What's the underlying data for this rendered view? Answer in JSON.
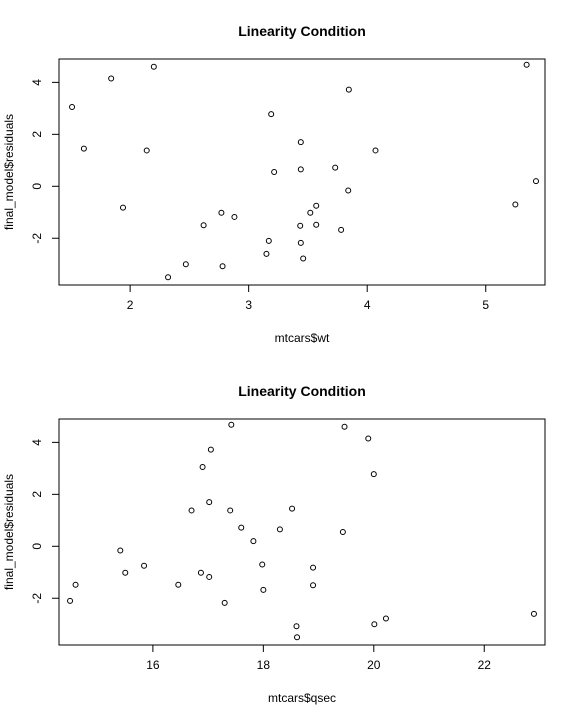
{
  "chart_data": [
    {
      "type": "scatter",
      "title": "Linearity Condition",
      "xlabel": "mtcars$wt",
      "ylabel": "final_model$residuals",
      "xlim": [
        1.4,
        5.5
      ],
      "ylim": [
        -3.8,
        4.9
      ],
      "xticks": [
        2,
        3,
        4,
        5
      ],
      "yticks": [
        -2,
        0,
        2,
        4
      ],
      "xtick_labels": [
        "2",
        "3",
        "4",
        "5"
      ],
      "ytick_labels": [
        "-2",
        "0",
        "2",
        "4"
      ],
      "marker": "open-circle",
      "grid": false,
      "points": [
        {
          "x": 1.51,
          "y": 3.05
        },
        {
          "x": 1.61,
          "y": 1.45
        },
        {
          "x": 1.84,
          "y": 4.15
        },
        {
          "x": 1.94,
          "y": -0.82
        },
        {
          "x": 2.14,
          "y": 1.38
        },
        {
          "x": 2.2,
          "y": 4.6
        },
        {
          "x": 2.32,
          "y": -3.5
        },
        {
          "x": 2.47,
          "y": -3.0
        },
        {
          "x": 2.62,
          "y": -1.5
        },
        {
          "x": 2.77,
          "y": -1.02
        },
        {
          "x": 2.78,
          "y": -3.08
        },
        {
          "x": 2.88,
          "y": -1.18
        },
        {
          "x": 3.15,
          "y": -2.6
        },
        {
          "x": 3.17,
          "y": -2.1
        },
        {
          "x": 3.19,
          "y": 2.78
        },
        {
          "x": 3.215,
          "y": 0.55
        },
        {
          "x": 3.435,
          "y": -1.52
        },
        {
          "x": 3.44,
          "y": 0.65
        },
        {
          "x": 3.44,
          "y": -2.18
        },
        {
          "x": 3.44,
          "y": 1.7
        },
        {
          "x": 3.46,
          "y": -2.78
        },
        {
          "x": 3.52,
          "y": -1.02
        },
        {
          "x": 3.57,
          "y": -0.75
        },
        {
          "x": 3.57,
          "y": -1.48
        },
        {
          "x": 3.73,
          "y": 0.72
        },
        {
          "x": 3.78,
          "y": -1.68
        },
        {
          "x": 3.84,
          "y": -0.16
        },
        {
          "x": 3.845,
          "y": 3.72
        },
        {
          "x": 4.07,
          "y": 1.38
        },
        {
          "x": 5.25,
          "y": -0.7
        },
        {
          "x": 5.345,
          "y": 4.68
        },
        {
          "x": 5.424,
          "y": 0.2
        }
      ]
    },
    {
      "type": "scatter",
      "title": "Linearity Condition",
      "xlabel": "mtcars$qsec",
      "ylabel": "final_model$residuals",
      "xlim": [
        14.3,
        23.1
      ],
      "ylim": [
        -3.8,
        4.9
      ],
      "xticks": [
        16,
        18,
        20,
        22
      ],
      "yticks": [
        -2,
        0,
        2,
        4
      ],
      "xtick_labels": [
        "16",
        "18",
        "20",
        "22"
      ],
      "ytick_labels": [
        "-2",
        "0",
        "2",
        "4"
      ],
      "marker": "open-circle",
      "grid": false,
      "points": [
        {
          "x": 14.5,
          "y": -2.1
        },
        {
          "x": 14.6,
          "y": -1.48
        },
        {
          "x": 15.41,
          "y": -0.16
        },
        {
          "x": 15.5,
          "y": -1.02
        },
        {
          "x": 15.84,
          "y": -0.75
        },
        {
          "x": 16.46,
          "y": -1.48
        },
        {
          "x": 16.7,
          "y": 1.38
        },
        {
          "x": 16.87,
          "y": -1.02
        },
        {
          "x": 16.9,
          "y": 3.05
        },
        {
          "x": 17.02,
          "y": -1.18
        },
        {
          "x": 17.02,
          "y": 1.7
        },
        {
          "x": 17.05,
          "y": 3.72
        },
        {
          "x": 17.3,
          "y": -2.18
        },
        {
          "x": 17.4,
          "y": 1.38
        },
        {
          "x": 17.42,
          "y": 4.68
        },
        {
          "x": 17.6,
          "y": 0.72
        },
        {
          "x": 17.82,
          "y": 0.2
        },
        {
          "x": 17.98,
          "y": -0.7
        },
        {
          "x": 18.0,
          "y": -1.68
        },
        {
          "x": 18.3,
          "y": 0.65
        },
        {
          "x": 18.52,
          "y": 1.45
        },
        {
          "x": 18.6,
          "y": -3.08
        },
        {
          "x": 18.61,
          "y": -3.5
        },
        {
          "x": 18.9,
          "y": -0.82
        },
        {
          "x": 18.9,
          "y": -1.5
        },
        {
          "x": 19.44,
          "y": 0.55
        },
        {
          "x": 19.47,
          "y": 4.6
        },
        {
          "x": 19.9,
          "y": 4.15
        },
        {
          "x": 20.0,
          "y": 2.78
        },
        {
          "x": 20.01,
          "y": -3.0
        },
        {
          "x": 20.22,
          "y": -2.78
        },
        {
          "x": 22.9,
          "y": -2.6
        }
      ]
    }
  ]
}
